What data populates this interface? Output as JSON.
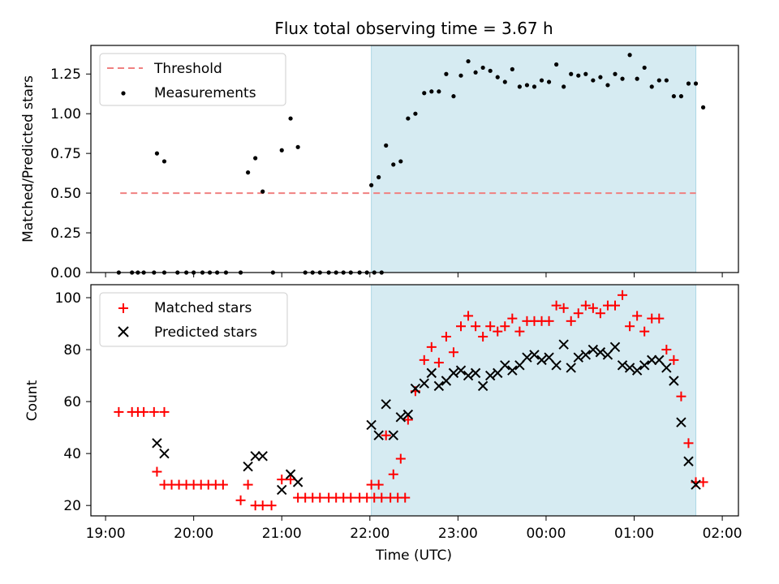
{
  "figure": {
    "title": "Flux total observing time = 3.67 h",
    "colors": {
      "threshold": "#f08080",
      "measurements": "#000000",
      "matched": "#ff0000",
      "predicted": "#000000",
      "shade": "#add8e6"
    }
  },
  "chart_data": [
    {
      "type": "scatter",
      "panel": "top",
      "title": "Flux total observing time = 3.67 h",
      "xlabel": "",
      "ylabel": "Matched/Predicted stars",
      "xlim": [
        "19:00",
        "02:00"
      ],
      "ylim": [
        0,
        1.43
      ],
      "yticks": [
        "0.00",
        "0.25",
        "0.50",
        "0.75",
        "1.00",
        "1.25"
      ],
      "grid": false,
      "legend": "top-left",
      "shaded_region": {
        "x_start": "22:01",
        "x_end": "01:42"
      },
      "threshold": {
        "name": "Threshold",
        "y": 0.5,
        "x_start": "19:10",
        "x_end": "01:42"
      },
      "series": [
        {
          "name": "Measurements",
          "marker": "dot",
          "points": [
            [
              "19:09",
              0
            ],
            [
              "19:18",
              0
            ],
            [
              "19:22",
              0
            ],
            [
              "19:26",
              0
            ],
            [
              "19:33",
              0
            ],
            [
              "19:40",
              0
            ],
            [
              "19:35",
              0.75
            ],
            [
              "19:40",
              0.7
            ],
            [
              "19:49",
              0
            ],
            [
              "19:55",
              0
            ],
            [
              "20:00",
              0
            ],
            [
              "20:06",
              0
            ],
            [
              "20:11",
              0
            ],
            [
              "20:16",
              0
            ],
            [
              "20:22",
              0
            ],
            [
              "20:32",
              0
            ],
            [
              "20:37",
              0.63
            ],
            [
              "20:42",
              0.72
            ],
            [
              "20:47",
              0.51
            ],
            [
              "20:54",
              0
            ],
            [
              "21:00",
              0.77
            ],
            [
              "21:06",
              0.97
            ],
            [
              "21:11",
              0.79
            ],
            [
              "21:16",
              0
            ],
            [
              "21:21",
              0
            ],
            [
              "21:26",
              0
            ],
            [
              "21:32",
              0
            ],
            [
              "21:37",
              0
            ],
            [
              "21:42",
              0
            ],
            [
              "21:47",
              0
            ],
            [
              "21:53",
              0
            ],
            [
              "21:58",
              0
            ],
            [
              "22:03",
              0
            ],
            [
              "22:08",
              0
            ],
            [
              "22:01",
              0.55
            ],
            [
              "22:06",
              0.6
            ],
            [
              "22:11",
              0.8
            ],
            [
              "22:16",
              0.68
            ],
            [
              "22:21",
              0.7
            ],
            [
              "22:26",
              0.97
            ],
            [
              "22:31",
              1.0
            ],
            [
              "22:37",
              1.13
            ],
            [
              "22:42",
              1.14
            ],
            [
              "22:47",
              1.14
            ],
            [
              "22:52",
              1.25
            ],
            [
              "22:57",
              1.11
            ],
            [
              "23:02",
              1.24
            ],
            [
              "23:07",
              1.33
            ],
            [
              "23:12",
              1.26
            ],
            [
              "23:17",
              1.29
            ],
            [
              "23:22",
              1.27
            ],
            [
              "23:27",
              1.23
            ],
            [
              "23:32",
              1.2
            ],
            [
              "23:37",
              1.28
            ],
            [
              "23:42",
              1.17
            ],
            [
              "23:47",
              1.18
            ],
            [
              "23:52",
              1.17
            ],
            [
              "23:57",
              1.21
            ],
            [
              "00:02",
              1.2
            ],
            [
              "00:07",
              1.31
            ],
            [
              "00:12",
              1.17
            ],
            [
              "00:17",
              1.25
            ],
            [
              "00:22",
              1.24
            ],
            [
              "00:27",
              1.25
            ],
            [
              "00:32",
              1.21
            ],
            [
              "00:37",
              1.23
            ],
            [
              "00:42",
              1.18
            ],
            [
              "00:47",
              1.25
            ],
            [
              "00:52",
              1.22
            ],
            [
              "00:57",
              1.37
            ],
            [
              "01:02",
              1.22
            ],
            [
              "01:07",
              1.29
            ],
            [
              "01:12",
              1.17
            ],
            [
              "01:17",
              1.21
            ],
            [
              "01:22",
              1.21
            ],
            [
              "01:27",
              1.11
            ],
            [
              "01:32",
              1.11
            ],
            [
              "01:37",
              1.19
            ],
            [
              "01:42",
              1.19
            ],
            [
              "01:47",
              1.04
            ]
          ]
        }
      ]
    },
    {
      "type": "scatter",
      "panel": "bottom",
      "xlabel": "Time (UTC)",
      "ylabel": "Count",
      "xlim": [
        "19:00",
        "02:00"
      ],
      "xticks": [
        "19:00",
        "20:00",
        "21:00",
        "22:00",
        "23:00",
        "00:00",
        "01:00",
        "02:00"
      ],
      "ylim": [
        16,
        105
      ],
      "yticks": [
        "20",
        "40",
        "60",
        "80",
        "100"
      ],
      "grid": false,
      "legend": "top-left",
      "shaded_region": {
        "x_start": "22:01",
        "x_end": "01:42"
      },
      "series": [
        {
          "name": "Matched stars",
          "marker": "plus",
          "points": [
            [
              "19:09",
              56
            ],
            [
              "19:18",
              56
            ],
            [
              "19:22",
              56
            ],
            [
              "19:26",
              56
            ],
            [
              "19:33",
              56
            ],
            [
              "19:40",
              56
            ],
            [
              "19:35",
              33
            ],
            [
              "19:40",
              28
            ],
            [
              "19:45",
              28
            ],
            [
              "19:50",
              28
            ],
            [
              "19:55",
              28
            ],
            [
              "20:00",
              28
            ],
            [
              "20:05",
              28
            ],
            [
              "20:10",
              28
            ],
            [
              "20:15",
              28
            ],
            [
              "20:20",
              28
            ],
            [
              "20:32",
              22
            ],
            [
              "20:37",
              28
            ],
            [
              "20:42",
              20
            ],
            [
              "20:47",
              20
            ],
            [
              "20:53",
              20
            ],
            [
              "21:00",
              30
            ],
            [
              "21:06",
              30
            ],
            [
              "21:11",
              23
            ],
            [
              "21:16",
              23
            ],
            [
              "21:21",
              23
            ],
            [
              "21:26",
              23
            ],
            [
              "21:32",
              23
            ],
            [
              "21:37",
              23
            ],
            [
              "21:42",
              23
            ],
            [
              "21:47",
              23
            ],
            [
              "21:53",
              23
            ],
            [
              "21:58",
              23
            ],
            [
              "22:03",
              23
            ],
            [
              "22:08",
              23
            ],
            [
              "22:14",
              23
            ],
            [
              "22:19",
              23
            ],
            [
              "22:24",
              23
            ],
            [
              "22:01",
              28
            ],
            [
              "22:06",
              28
            ],
            [
              "22:11",
              47
            ],
            [
              "22:16",
              32
            ],
            [
              "22:21",
              38
            ],
            [
              "22:26",
              53
            ],
            [
              "22:31",
              64
            ],
            [
              "22:37",
              76
            ],
            [
              "22:42",
              81
            ],
            [
              "22:47",
              75
            ],
            [
              "22:52",
              85
            ],
            [
              "22:57",
              79
            ],
            [
              "23:02",
              89
            ],
            [
              "23:07",
              93
            ],
            [
              "23:12",
              89
            ],
            [
              "23:17",
              85
            ],
            [
              "23:22",
              89
            ],
            [
              "23:27",
              87
            ],
            [
              "23:32",
              89
            ],
            [
              "23:37",
              92
            ],
            [
              "23:42",
              87
            ],
            [
              "23:47",
              91
            ],
            [
              "23:52",
              91
            ],
            [
              "23:57",
              91
            ],
            [
              "00:02",
              91
            ],
            [
              "00:07",
              97
            ],
            [
              "00:12",
              96
            ],
            [
              "00:17",
              91
            ],
            [
              "00:22",
              94
            ],
            [
              "00:27",
              97
            ],
            [
              "00:32",
              96
            ],
            [
              "00:37",
              94
            ],
            [
              "00:42",
              97
            ],
            [
              "00:47",
              97
            ],
            [
              "00:52",
              101
            ],
            [
              "00:57",
              89
            ],
            [
              "01:02",
              93
            ],
            [
              "01:07",
              87
            ],
            [
              "01:12",
              92
            ],
            [
              "01:17",
              92
            ],
            [
              "01:22",
              80
            ],
            [
              "01:27",
              76
            ],
            [
              "01:32",
              62
            ],
            [
              "01:37",
              44
            ],
            [
              "01:42",
              29
            ],
            [
              "01:47",
              29
            ]
          ]
        },
        {
          "name": "Predicted stars",
          "marker": "x",
          "points": [
            [
              "19:35",
              44
            ],
            [
              "19:40",
              40
            ],
            [
              "20:37",
              35
            ],
            [
              "20:42",
              39
            ],
            [
              "20:47",
              39
            ],
            [
              "21:00",
              26
            ],
            [
              "21:06",
              32
            ],
            [
              "21:11",
              29
            ],
            [
              "22:01",
              51
            ],
            [
              "22:06",
              47
            ],
            [
              "22:11",
              59
            ],
            [
              "22:16",
              47
            ],
            [
              "22:21",
              54
            ],
            [
              "22:26",
              55
            ],
            [
              "22:31",
              65
            ],
            [
              "22:37",
              67
            ],
            [
              "22:42",
              71
            ],
            [
              "22:47",
              66
            ],
            [
              "22:52",
              68
            ],
            [
              "22:57",
              71
            ],
            [
              "23:02",
              72
            ],
            [
              "23:07",
              70
            ],
            [
              "23:12",
              71
            ],
            [
              "23:17",
              66
            ],
            [
              "23:22",
              70
            ],
            [
              "23:27",
              71
            ],
            [
              "23:32",
              74
            ],
            [
              "23:37",
              72
            ],
            [
              "23:42",
              74
            ],
            [
              "23:47",
              77
            ],
            [
              "23:52",
              78
            ],
            [
              "23:57",
              76
            ],
            [
              "00:02",
              77
            ],
            [
              "00:07",
              74
            ],
            [
              "00:12",
              82
            ],
            [
              "00:17",
              73
            ],
            [
              "00:22",
              77
            ],
            [
              "00:27",
              78
            ],
            [
              "00:32",
              80
            ],
            [
              "00:37",
              79
            ],
            [
              "00:42",
              78
            ],
            [
              "00:47",
              81
            ],
            [
              "00:52",
              74
            ],
            [
              "00:57",
              73
            ],
            [
              "01:02",
              72
            ],
            [
              "01:07",
              74
            ],
            [
              "01:12",
              76
            ],
            [
              "01:17",
              76
            ],
            [
              "01:22",
              73
            ],
            [
              "01:27",
              68
            ],
            [
              "01:32",
              52
            ],
            [
              "01:37",
              37
            ],
            [
              "01:42",
              28
            ]
          ]
        }
      ]
    }
  ]
}
